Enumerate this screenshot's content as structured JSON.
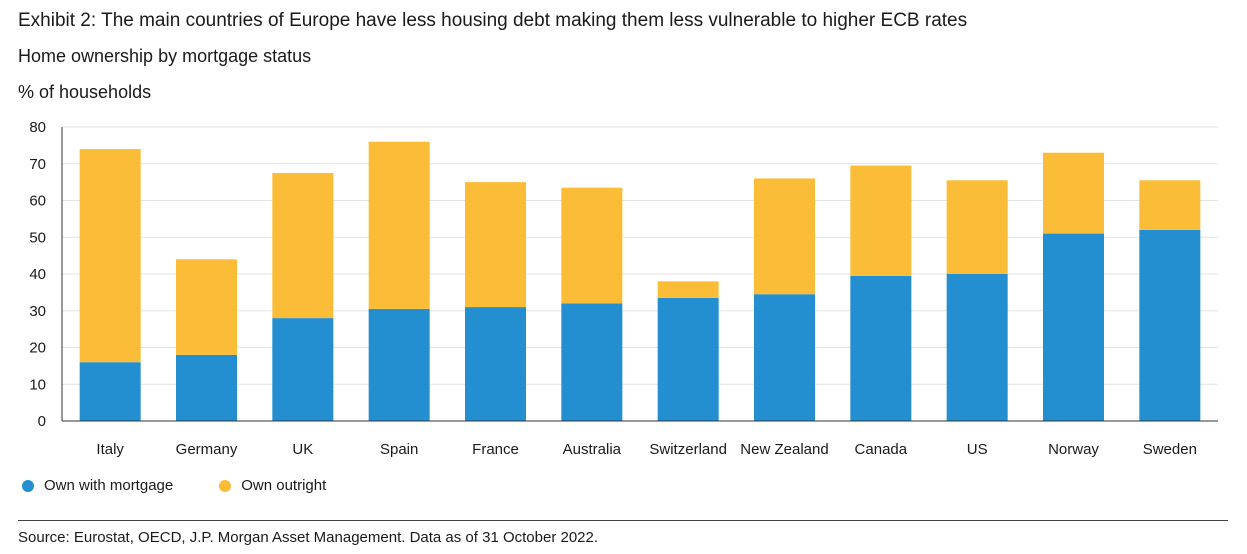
{
  "header": {
    "title": "Exhibit 2: The main countries of Europe have less housing debt making them less vulnerable to higher ECB rates",
    "subtitle": "Home ownership by mortgage status",
    "unit": "% of households"
  },
  "colors": {
    "mortgage": "#238fd1",
    "outright": "#fbbd37",
    "grid": "#e3e3e3",
    "axis": "#333333"
  },
  "chart_data": {
    "type": "bar",
    "stacked": true,
    "categories": [
      "Italy",
      "Germany",
      "UK",
      "Spain",
      "France",
      "Australia",
      "Switzerland",
      "New Zealand",
      "Canada",
      "US",
      "Norway",
      "Sweden"
    ],
    "series": [
      {
        "name": "Own with mortgage",
        "color": "#238fd1",
        "values": [
          16,
          18,
          28,
          30.5,
          31,
          32,
          33.5,
          34.5,
          39.5,
          40,
          51,
          52
        ]
      },
      {
        "name": "Own outright",
        "color": "#fbbd37",
        "values": [
          58,
          26,
          39.5,
          45.5,
          34,
          31.5,
          4.5,
          31.5,
          30,
          25.5,
          22,
          13.5
        ]
      }
    ],
    "ylim": [
      0,
      80
    ],
    "yticks": [
      0,
      10,
      20,
      30,
      40,
      50,
      60,
      70,
      80
    ],
    "grid": true,
    "legend": "bottom-left"
  },
  "footer": {
    "source": "Source: Eurostat, OECD, J.P. Morgan Asset Management. Data as of 31 October 2022."
  }
}
